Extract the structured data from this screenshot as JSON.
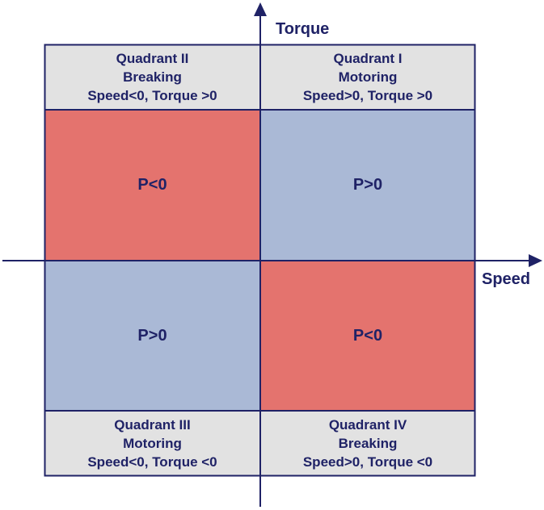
{
  "colors": {
    "ink": "#1f2266",
    "negative_power": "#e4736e",
    "positive_power": "#aab9d6",
    "label_bg": "#e2e2e2"
  },
  "axes": {
    "y_title": "Torque",
    "x_title": "Speed"
  },
  "quadrants": {
    "q2": {
      "name": "Quadrant II",
      "mode": "Breaking",
      "condition": "Speed<0, Torque >0",
      "power": "P<0"
    },
    "q1": {
      "name": "Quadrant I",
      "mode": "Motoring",
      "condition": "Speed>0, Torque >0",
      "power": "P>0"
    },
    "q3": {
      "name": "Quadrant III",
      "mode": "Motoring",
      "condition": "Speed<0, Torque <0",
      "power": "P>0"
    },
    "q4": {
      "name": "Quadrant IV",
      "mode": "Breaking",
      "condition": "Speed>0, Torque <0",
      "power": "P<0"
    }
  }
}
